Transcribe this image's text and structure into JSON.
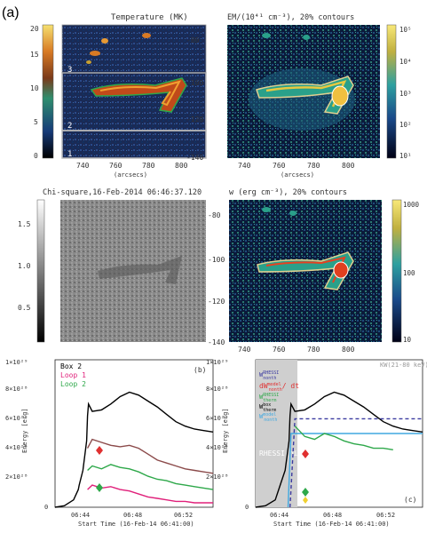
{
  "figure": {
    "panel_a_label": "(a)",
    "panel_b_label": "(b)",
    "panel_c_label": "(c)"
  },
  "temperature_map": {
    "title": "Temperature (MK)",
    "colorbar_ticks": [
      "20",
      "15",
      "10",
      "5",
      "0"
    ],
    "box_labels": [
      "3",
      "2",
      "1"
    ],
    "y_ticks": [
      "-80",
      "-100",
      "-120",
      "-140"
    ],
    "x_ticks": [
      "740",
      "760",
      "780",
      "800"
    ],
    "xlabel": "(arcsecs)"
  },
  "em_map": {
    "title": "EM/(10⁴¹ cm⁻³), 20% contours",
    "colorbar_ticks": [
      "10⁵",
      "10⁴",
      "10³",
      "10²",
      "10¹"
    ],
    "x_ticks": [
      "740",
      "760",
      "780",
      "800"
    ],
    "xlabel": "(arcsecs)"
  },
  "chi_map": {
    "title": "Chi-square,16-Feb-2014 06:46:37.120",
    "colorbar_ticks": [
      "1.5",
      "1.0",
      "0.5"
    ]
  },
  "w_map": {
    "title": "w (erg cm⁻³), 20% contours",
    "colorbar_ticks": [
      "1000",
      "100",
      "10"
    ],
    "y_ticks": [
      "-80",
      "-100",
      "-120",
      "-140"
    ],
    "x_ticks": [
      "740",
      "760",
      "780",
      "800"
    ]
  },
  "chart_data": [
    {
      "type": "line",
      "panel": "(b)",
      "xlabel": "Start Time (16-Feb-14 06:41:00)",
      "ylabel": "Energy [erg]",
      "y_ticks": [
        "1×10²⁹",
        "8×10²⁸",
        "6×10²⁸",
        "4×10²⁸",
        "2×10²⁸",
        "0"
      ],
      "x_ticks": [
        "06:44",
        "06:48",
        "06:52"
      ],
      "ylim": [
        0,
        1e+29
      ],
      "legend": [
        "Box 2",
        "Loop 1",
        "Loop 2"
      ],
      "series": [
        {
          "name": "Box 2",
          "color": "#000000",
          "x": [
            0,
            1,
            2,
            2.5,
            2.6,
            3,
            3.4,
            3.5,
            3.6,
            4,
            5,
            6,
            7,
            8,
            9,
            10,
            11,
            12,
            13,
            14,
            15,
            16,
            17
          ],
          "y": [
            0,
            1e+27,
            5e+27,
            1.2e+28,
            1.5e+28,
            2.5e+28,
            4.5e+28,
            6.2e+28,
            7e+28,
            6.5e+28,
            6.6e+28,
            7e+28,
            7.5e+28,
            7.8e+28,
            7.6e+28,
            7.2e+28,
            6.8e+28,
            6.3e+28,
            5.8e+28,
            5.5e+28,
            5.3e+28,
            5.2e+28,
            5.1e+28
          ]
        },
        {
          "name": "",
          "color": "#8b4a4a",
          "x": [
            3.5,
            4,
            5,
            6,
            7,
            8,
            9,
            10,
            11,
            12,
            13,
            14,
            15,
            16,
            17
          ],
          "y": [
            4e+28,
            4.6e+28,
            4.4e+28,
            4.2e+28,
            4.1e+28,
            4.2e+28,
            4e+28,
            3.6e+28,
            3.2e+28,
            3e+28,
            2.8e+28,
            2.6e+28,
            2.5e+28,
            2.4e+28,
            2.3e+28
          ]
        },
        {
          "name": "Loop 2",
          "color": "#2ea84a",
          "x": [
            3.5,
            4,
            5,
            6,
            7,
            8,
            9,
            10,
            11,
            12,
            13,
            14,
            15,
            16,
            17
          ],
          "y": [
            2.5e+28,
            2.8e+28,
            2.6e+28,
            2.9e+28,
            2.7e+28,
            2.6e+28,
            2.4e+28,
            2.1e+28,
            1.9e+28,
            1.8e+28,
            1.6e+28,
            1.5e+28,
            1.4e+28,
            1.3e+28,
            1.2e+28
          ]
        },
        {
          "name": "Loop 1",
          "color": "#e0207a",
          "x": [
            3.5,
            4,
            5,
            6,
            7,
            8,
            9,
            10,
            11,
            12,
            13,
            14,
            15,
            16,
            17
          ],
          "y": [
            1.2e+28,
            1.5e+28,
            1.3e+28,
            1.4e+28,
            1.2e+28,
            1.1e+28,
            9e+27,
            7e+27,
            6e+27,
            5e+27,
            4e+27,
            4e+27,
            3e+27,
            3e+27,
            3e+27
          ]
        }
      ]
    },
    {
      "type": "line",
      "panel": "(c)",
      "xlabel": "Start Time (16-Feb-14 06:41:00)",
      "ylabel": "Energy [erg]",
      "y_ticks": [
        "1×10²⁹",
        "8×10²⁸",
        "6×10²⁸",
        "4×10²⁸",
        "2×10²⁸",
        "0"
      ],
      "x_ticks": [
        "06:44",
        "06:48",
        "06:52"
      ],
      "ylim": [
        0,
        1e+29
      ],
      "rhessi_label": "RHESSI\nnight",
      "kw_label": "KW(21-80 keV)",
      "legend": [
        "W_rhessi_nonth",
        "dW_nonth/dt",
        "W_rhessi_therm",
        "W_box_therm",
        "W_model_nonth"
      ],
      "legend_labels": [
        {
          "main": "W",
          "sup": "RHESSI",
          "sub": "nonth",
          "color": "#3a3aa0"
        },
        {
          "main": "dW",
          "sup": "model",
          "sub": "nonth",
          "extra": "/ dt",
          "color": "#e03030"
        },
        {
          "main": "W",
          "sup": "RHESSI",
          "sub": "therm",
          "color": "#2ea84a"
        },
        {
          "main": "W",
          "sup": "box",
          "sub": "therm",
          "color": "#000000"
        },
        {
          "main": "W",
          "sup": "model",
          "sub": "nonth",
          "color": "#40a8e0"
        }
      ],
      "series": [
        {
          "name": "W_box_therm",
          "color": "#000000",
          "x": [
            0,
            1,
            2,
            2.5,
            3,
            3.4,
            3.5,
            3.6,
            4,
            5,
            6,
            7,
            8,
            9,
            10,
            11,
            12,
            13,
            14,
            15,
            16,
            17
          ],
          "y": [
            0,
            1e+27,
            5e+27,
            1.5e+28,
            2.5e+28,
            4.5e+28,
            6.2e+28,
            7e+28,
            6.5e+28,
            6.6e+28,
            7e+28,
            7.5e+28,
            7.8e+28,
            7.6e+28,
            7.2e+28,
            6.8e+28,
            6.3e+28,
            5.8e+28,
            5.5e+28,
            5.3e+28,
            5.2e+28,
            5.1e+28
          ]
        },
        {
          "name": "W_model_nonth",
          "color": "#40a8e0",
          "x": [
            3.3,
            3.6,
            4,
            17
          ],
          "y": [
            0,
            5e+28,
            5e+28,
            5e+28
          ]
        },
        {
          "name": "W_rhessi_nonth",
          "color": "#3a3aa0",
          "x": [
            3.5,
            4,
            5,
            17
          ],
          "y": [
            0,
            6e+28,
            6e+28,
            6e+28
          ]
        },
        {
          "name": "W_rhessi_therm",
          "color": "#2ea84a",
          "x": [
            4,
            5,
            6,
            7,
            8,
            9,
            10,
            11,
            12,
            13,
            14
          ],
          "y": [
            5.5e+28,
            4.8e+28,
            4.6e+28,
            5e+28,
            4.8e+28,
            4.5e+28,
            4.3e+28,
            4.2e+28,
            4e+28,
            4e+28,
            3.9e+28
          ]
        }
      ]
    }
  ]
}
